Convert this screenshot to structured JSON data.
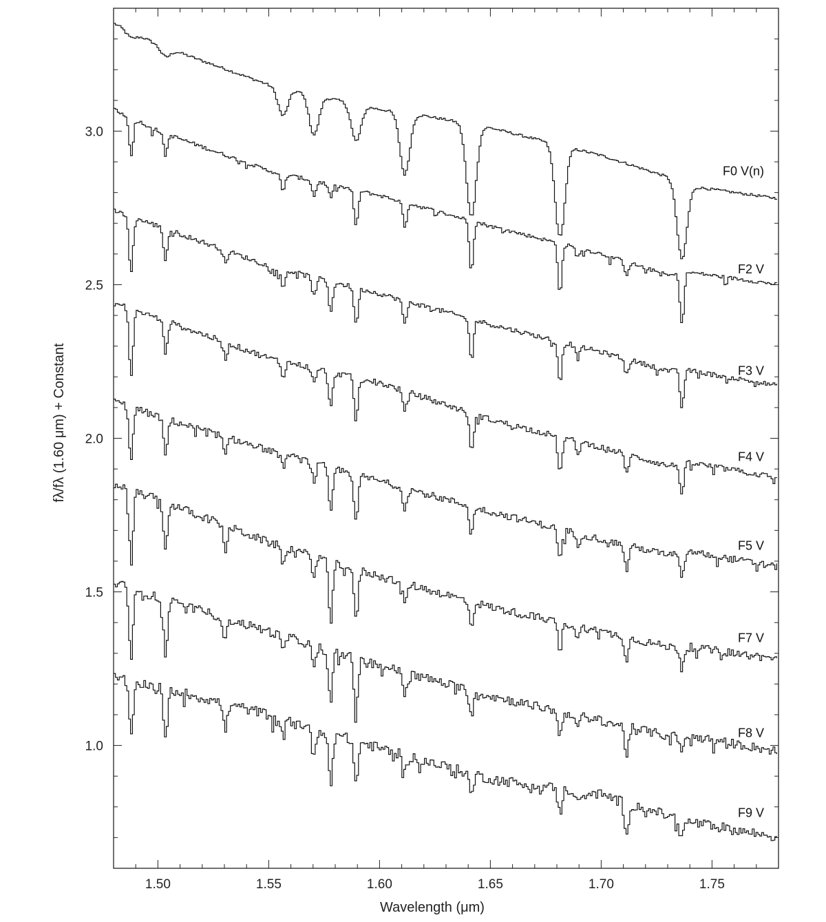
{
  "chart_data": {
    "type": "line",
    "xlabel": "Wavelength (μm)",
    "ylabel": "fλ/fλ (1.60 μm) + Constant",
    "xlim": [
      1.48,
      1.78
    ],
    "ylim": [
      0.6,
      3.4
    ],
    "xticks": [
      "1.50",
      "1.55",
      "1.60",
      "1.65",
      "1.70",
      "1.75"
    ],
    "yticks": [
      "1.0",
      "1.5",
      "2.0",
      "2.5",
      "3.0"
    ],
    "x_minor_step": 0.01,
    "y_minor_step": 0.1,
    "grid": false,
    "line_color": "#111111",
    "series": [
      {
        "name": "F0 V(n)",
        "label_y": 2.87,
        "anchors": [
          [
            1.48,
            3.35
          ],
          [
            1.5,
            3.28
          ],
          [
            1.55,
            3.15
          ],
          [
            1.6,
            3.07
          ],
          [
            1.62,
            3.05
          ],
          [
            1.65,
            3.01
          ],
          [
            1.7,
            2.92
          ],
          [
            1.73,
            2.85
          ],
          [
            1.74,
            2.82
          ],
          [
            1.78,
            2.78
          ]
        ],
        "lines": [
          [
            1.4875,
            0.02
          ],
          [
            1.503,
            0.03
          ],
          [
            1.556,
            0.09
          ],
          [
            1.57,
            0.13
          ],
          [
            1.589,
            0.12
          ],
          [
            1.611,
            0.2
          ],
          [
            1.641,
            0.3
          ],
          [
            1.681,
            0.3
          ],
          [
            1.736,
            0.25
          ]
        ]
      },
      {
        "name": "F2 V",
        "label_y": 2.55,
        "anchors": [
          [
            1.48,
            3.07
          ],
          [
            1.5,
            3.0
          ],
          [
            1.55,
            2.87
          ],
          [
            1.6,
            2.79
          ],
          [
            1.65,
            2.69
          ],
          [
            1.7,
            2.6
          ],
          [
            1.73,
            2.53
          ],
          [
            1.74,
            2.54
          ],
          [
            1.78,
            2.5
          ]
        ],
        "lines": [
          [
            1.4875,
            0.12
          ],
          [
            1.503,
            0.07
          ],
          [
            1.556,
            0.06
          ],
          [
            1.57,
            0.05
          ],
          [
            1.5775,
            0.04
          ],
          [
            1.589,
            0.12
          ],
          [
            1.611,
            0.08
          ],
          [
            1.641,
            0.16
          ],
          [
            1.681,
            0.16
          ],
          [
            1.689,
            0.03
          ],
          [
            1.711,
            0.04
          ],
          [
            1.736,
            0.16
          ]
        ]
      },
      {
        "name": "F3 V",
        "label_y": 2.22,
        "anchors": [
          [
            1.48,
            2.74
          ],
          [
            1.5,
            2.69
          ],
          [
            1.55,
            2.56
          ],
          [
            1.6,
            2.47
          ],
          [
            1.65,
            2.37
          ],
          [
            1.7,
            2.28
          ],
          [
            1.73,
            2.22
          ],
          [
            1.74,
            2.22
          ],
          [
            1.78,
            2.17
          ]
        ],
        "lines": [
          [
            1.4875,
            0.18
          ],
          [
            1.503,
            0.1
          ],
          [
            1.53,
            0.04
          ],
          [
            1.556,
            0.06
          ],
          [
            1.57,
            0.06
          ],
          [
            1.5775,
            0.1
          ],
          [
            1.589,
            0.12
          ],
          [
            1.611,
            0.08
          ],
          [
            1.641,
            0.13
          ],
          [
            1.681,
            0.13
          ],
          [
            1.689,
            0.04
          ],
          [
            1.711,
            0.05
          ],
          [
            1.736,
            0.12
          ]
        ]
      },
      {
        "name": "F4 V",
        "label_y": 1.94,
        "anchors": [
          [
            1.48,
            2.44
          ],
          [
            1.5,
            2.39
          ],
          [
            1.55,
            2.26
          ],
          [
            1.6,
            2.18
          ],
          [
            1.65,
            2.06
          ],
          [
            1.7,
            1.97
          ],
          [
            1.73,
            1.91
          ],
          [
            1.74,
            1.92
          ],
          [
            1.78,
            1.87
          ]
        ],
        "lines": [
          [
            1.4875,
            0.22
          ],
          [
            1.503,
            0.1
          ],
          [
            1.53,
            0.05
          ],
          [
            1.556,
            0.05
          ],
          [
            1.57,
            0.05
          ],
          [
            1.5775,
            0.12
          ],
          [
            1.589,
            0.14
          ],
          [
            1.611,
            0.07
          ],
          [
            1.641,
            0.12
          ],
          [
            1.681,
            0.12
          ],
          [
            1.689,
            0.04
          ],
          [
            1.711,
            0.06
          ],
          [
            1.736,
            0.1
          ]
        ]
      },
      {
        "name": "F5 V",
        "label_y": 1.65,
        "anchors": [
          [
            1.48,
            2.12
          ],
          [
            1.5,
            2.07
          ],
          [
            1.55,
            1.96
          ],
          [
            1.6,
            1.86
          ],
          [
            1.65,
            1.76
          ],
          [
            1.7,
            1.67
          ],
          [
            1.73,
            1.62
          ],
          [
            1.74,
            1.63
          ],
          [
            1.78,
            1.58
          ]
        ],
        "lines": [
          [
            1.4875,
            0.17
          ],
          [
            1.503,
            0.12
          ],
          [
            1.53,
            0.06
          ],
          [
            1.556,
            0.04
          ],
          [
            1.57,
            0.06
          ],
          [
            1.5775,
            0.15
          ],
          [
            1.589,
            0.16
          ],
          [
            1.611,
            0.07
          ],
          [
            1.641,
            0.09
          ],
          [
            1.681,
            0.1
          ],
          [
            1.689,
            0.04
          ],
          [
            1.711,
            0.08
          ],
          [
            1.736,
            0.09
          ]
        ]
      },
      {
        "name": "F7 V",
        "label_y": 1.35,
        "anchors": [
          [
            1.48,
            1.85
          ],
          [
            1.5,
            1.8
          ],
          [
            1.55,
            1.66
          ],
          [
            1.6,
            1.55
          ],
          [
            1.65,
            1.45
          ],
          [
            1.7,
            1.37
          ],
          [
            1.73,
            1.32
          ],
          [
            1.74,
            1.32
          ],
          [
            1.78,
            1.28
          ]
        ],
        "lines": [
          [
            1.4875,
            0.24
          ],
          [
            1.503,
            0.16
          ],
          [
            1.53,
            0.08
          ],
          [
            1.556,
            0.05
          ],
          [
            1.57,
            0.06
          ],
          [
            1.5775,
            0.18
          ],
          [
            1.589,
            0.17
          ],
          [
            1.611,
            0.07
          ],
          [
            1.641,
            0.08
          ],
          [
            1.681,
            0.09
          ],
          [
            1.689,
            0.04
          ],
          [
            1.711,
            0.07
          ],
          [
            1.736,
            0.07
          ]
        ]
      },
      {
        "name": "F8 V",
        "label_y": 1.04,
        "anchors": [
          [
            1.48,
            1.53
          ],
          [
            1.5,
            1.48
          ],
          [
            1.55,
            1.37
          ],
          [
            1.6,
            1.26
          ],
          [
            1.65,
            1.16
          ],
          [
            1.7,
            1.08
          ],
          [
            1.73,
            1.03
          ],
          [
            1.74,
            1.03
          ],
          [
            1.78,
            0.98
          ]
        ],
        "lines": [
          [
            1.4875,
            0.24
          ],
          [
            1.503,
            0.18
          ],
          [
            1.53,
            0.07
          ],
          [
            1.556,
            0.05
          ],
          [
            1.57,
            0.08
          ],
          [
            1.5775,
            0.16
          ],
          [
            1.589,
            0.18
          ],
          [
            1.611,
            0.07
          ],
          [
            1.641,
            0.08
          ],
          [
            1.681,
            0.08
          ],
          [
            1.689,
            0.04
          ],
          [
            1.711,
            0.09
          ],
          [
            1.736,
            0.06
          ]
        ]
      },
      {
        "name": "F9 V",
        "label_y": 0.78,
        "anchors": [
          [
            1.48,
            1.22
          ],
          [
            1.5,
            1.19
          ],
          [
            1.55,
            1.1
          ],
          [
            1.6,
            0.99
          ],
          [
            1.65,
            0.89
          ],
          [
            1.7,
            0.84
          ],
          [
            1.73,
            0.77
          ],
          [
            1.74,
            0.75
          ],
          [
            1.78,
            0.7
          ]
        ],
        "lines": [
          [
            1.4875,
            0.19
          ],
          [
            1.503,
            0.17
          ],
          [
            1.53,
            0.09
          ],
          [
            1.556,
            0.06
          ],
          [
            1.57,
            0.1
          ],
          [
            1.5775,
            0.16
          ],
          [
            1.589,
            0.14
          ],
          [
            1.611,
            0.06
          ],
          [
            1.641,
            0.07
          ],
          [
            1.681,
            0.08
          ],
          [
            1.689,
            0.04
          ],
          [
            1.711,
            0.12
          ],
          [
            1.736,
            0.06
          ]
        ]
      }
    ]
  }
}
